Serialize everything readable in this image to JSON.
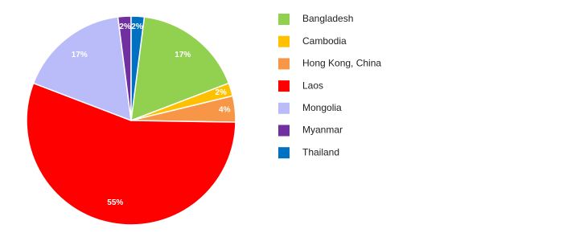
{
  "chart_data": {
    "type": "pie",
    "categories": [
      "Bangladesh",
      "Cambodia",
      "Hong Kong, China",
      "Laos",
      "Mongolia",
      "Myanmar",
      "Thailand"
    ],
    "values": [
      17,
      2,
      4,
      55,
      17,
      2,
      2
    ],
    "value_labels": [
      "17%",
      "2%",
      "4%",
      "55%",
      "17%",
      "2%",
      "2%"
    ],
    "colors": [
      "#92d050",
      "#ffc000",
      "#f79646",
      "#ff0000",
      "#babcfa",
      "#7030a0",
      "#0070c0"
    ],
    "legend": "right"
  }
}
